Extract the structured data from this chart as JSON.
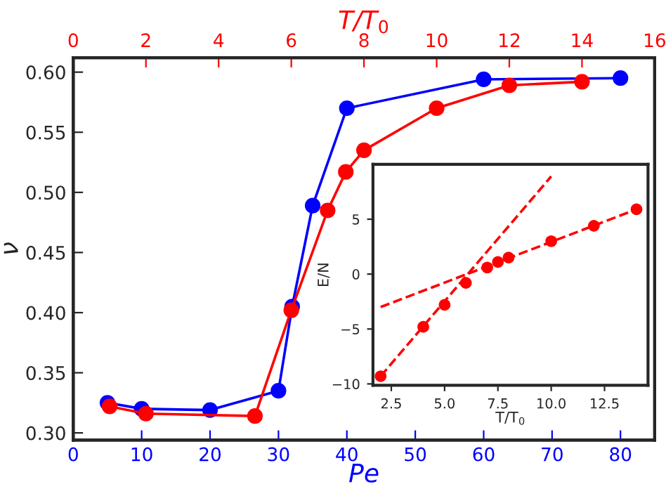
{
  "chart_data": [
    {
      "type": "line",
      "xlabel": "Pe",
      "ylabel": "ν",
      "x2label": "T/T$_{0}$",
      "xlim": [
        0,
        85
      ],
      "xticks": [
        0,
        10,
        20,
        30,
        40,
        50,
        60,
        70,
        80
      ],
      "x2lim": [
        0,
        16
      ],
      "x2ticks": [
        0,
        2,
        4,
        6,
        8,
        10,
        12,
        14,
        16
      ],
      "ylim": [
        0.294,
        0.612
      ],
      "yticks": [
        {
          "value": 0.3,
          "label": "0.30"
        },
        {
          "value": 0.35,
          "label": "0.35"
        },
        {
          "value": 0.4,
          "label": "0.40"
        },
        {
          "value": 0.45,
          "label": "0.45"
        },
        {
          "value": 0.5,
          "label": "0.50"
        },
        {
          "value": 0.55,
          "label": "0.55"
        },
        {
          "value": 0.6,
          "label": "0.60"
        }
      ],
      "marker": "circle",
      "line_style": "solid",
      "grid": false,
      "legend": false,
      "series": [
        {
          "color": "#0000ff",
          "x": [
            5,
            10,
            20,
            30,
            32,
            35,
            40,
            60,
            80
          ],
          "values": [
            0.325,
            0.32,
            0.319,
            0.335,
            0.405,
            0.489,
            0.57,
            0.594,
            0.595
          ]
        },
        {
          "color": "#ff0000",
          "axis": "x2",
          "x": [
            1,
            2,
            5,
            6,
            7,
            7.5,
            8,
            10,
            12,
            14
          ],
          "values": [
            0.322,
            0.316,
            0.314,
            0.402,
            0.485,
            0.517,
            0.535,
            0.57,
            0.589,
            0.592
          ]
        }
      ]
    },
    {
      "type": "scatter",
      "xlabel": "T/T$_{0}$",
      "ylabel": "E/N",
      "xlim": [
        1.64,
        14.54
      ],
      "xticks": [
        {
          "value": 2.5,
          "label": "2.5"
        },
        {
          "value": 5,
          "label": "5.0"
        },
        {
          "value": 7.5,
          "label": "7.5"
        },
        {
          "value": 10,
          "label": "10.0"
        },
        {
          "value": 12.5,
          "label": "12.5"
        }
      ],
      "ylim": [
        -10.13,
        10.0
      ],
      "yticks": [
        {
          "value": -10,
          "label": "−10"
        },
        {
          "value": -5,
          "label": "−5"
        },
        0,
        5
      ],
      "grid": false,
      "legend": false,
      "series": [
        {
          "type": "scatter",
          "color": "#ff0000",
          "marker": "circle",
          "x": [
            2,
            4,
            5,
            6,
            7,
            7.5,
            8,
            10,
            12,
            14
          ],
          "values": [
            -9.3,
            -4.8,
            -2.8,
            -0.8,
            0.6,
            1.1,
            1.5,
            3.0,
            4.4,
            5.9
          ]
        },
        {
          "type": "line",
          "color": "#ff0000",
          "marker": "none",
          "line_style": "dashed",
          "x": [
            2,
            10
          ],
          "values": [
            -9.3,
            8.9
          ]
        },
        {
          "type": "line",
          "color": "#ff0000",
          "marker": "none",
          "line_style": "dashed",
          "x": [
            2,
            14
          ],
          "values": [
            -3.0,
            5.9
          ]
        }
      ]
    }
  ]
}
